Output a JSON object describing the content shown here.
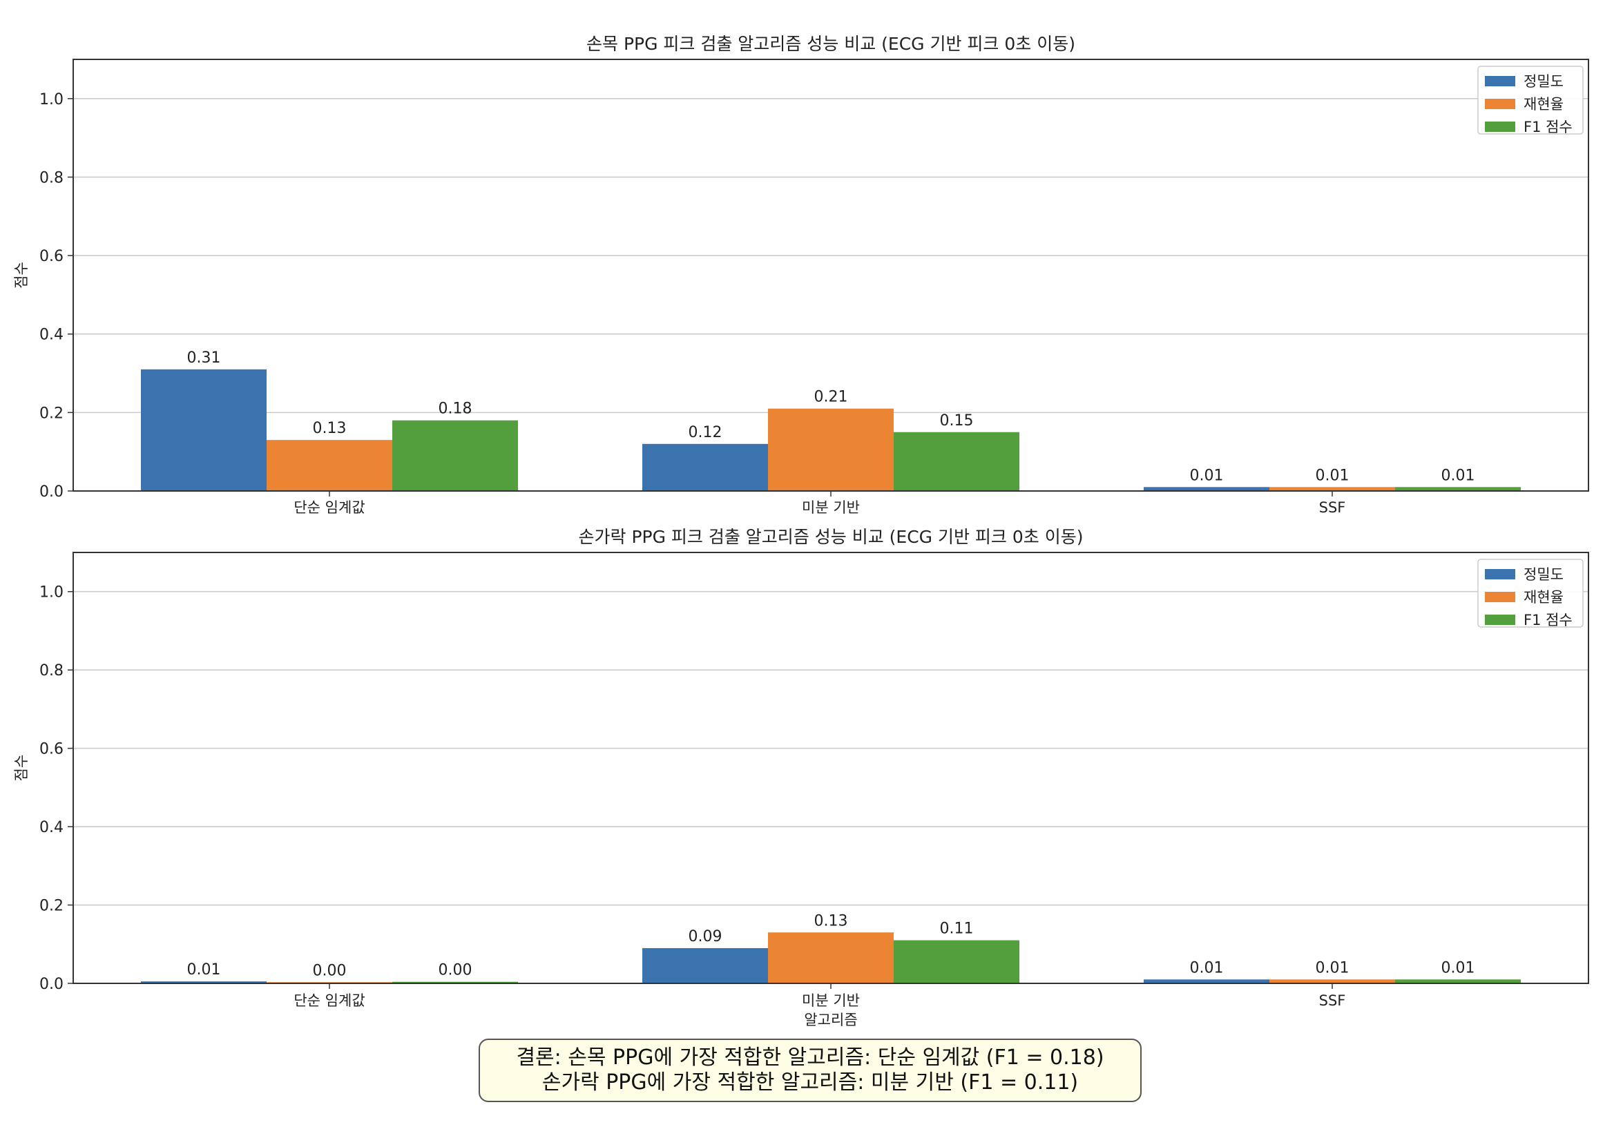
{
  "colors": {
    "precision": "#3a73ad",
    "recall": "#ec8533",
    "f1": "#539e3d",
    "grid": "#cccccc"
  },
  "legend": {
    "position": "top-right",
    "labels": [
      "정밀도",
      "재현율",
      "F1 점수"
    ]
  },
  "chart_data": [
    {
      "type": "bar",
      "title": "손목 PPG 피크 검출 알고리즘 성능 비교 (ECG 기반 피크 0초 이동)",
      "xlabel": "",
      "ylabel": "점수",
      "ylim": [
        0,
        1.1
      ],
      "yticks": [
        "0.0",
        "0.2",
        "0.4",
        "0.6",
        "0.8",
        "1.0"
      ],
      "grid": "y",
      "categories": [
        "단순 임계값",
        "미분 기반",
        "SSF"
      ],
      "series": [
        {
          "name": "정밀도",
          "values": [
            0.31,
            0.12,
            0.01
          ],
          "labels": [
            "0.31",
            "0.12",
            "0.01"
          ]
        },
        {
          "name": "재현율",
          "values": [
            0.13,
            0.21,
            0.01
          ],
          "labels": [
            "0.13",
            "0.21",
            "0.01"
          ]
        },
        {
          "name": "F1 점수",
          "values": [
            0.18,
            0.15,
            0.01
          ],
          "labels": [
            "0.18",
            "0.15",
            "0.01"
          ]
        }
      ]
    },
    {
      "type": "bar",
      "title": "손가락 PPG 피크 검출 알고리즘 성능 비교 (ECG 기반 피크 0초 이동)",
      "xlabel": "",
      "ylabel": "점수",
      "ylim": [
        0,
        1.1
      ],
      "yticks": [
        "0.0",
        "0.2",
        "0.4",
        "0.6",
        "0.8",
        "1.0"
      ],
      "grid": "y",
      "categories": [
        "단순 임계값",
        "미분 기반\n알고리즘",
        "SSF"
      ],
      "series": [
        {
          "name": "정밀도",
          "values": [
            0.005,
            0.09,
            0.01
          ],
          "labels": [
            "0.01",
            "0.09",
            "0.01"
          ]
        },
        {
          "name": "재현율",
          "values": [
            0.003,
            0.13,
            0.01
          ],
          "labels": [
            "0.00",
            "0.13",
            "0.01"
          ]
        },
        {
          "name": "F1 점수",
          "values": [
            0.004,
            0.11,
            0.01
          ],
          "labels": [
            "0.00",
            "0.11",
            "0.01"
          ]
        }
      ]
    }
  ],
  "conclusion": {
    "line1": "결론: 손목 PPG에 가장 적합한 알고리즘: 단순 임계값 (F1 = 0.18)",
    "line2": "손가락 PPG에 가장 적합한 알고리즘: 미분 기반 (F1 = 0.11)"
  }
}
